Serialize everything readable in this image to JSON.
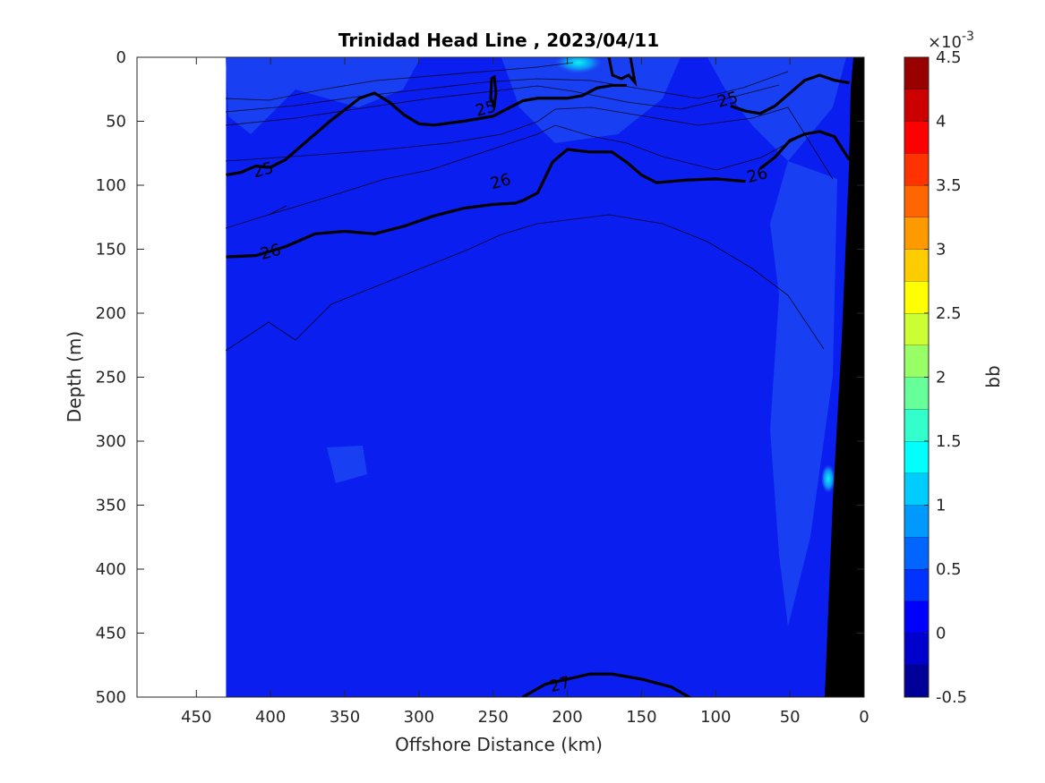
{
  "chart_data": {
    "type": "heatmap",
    "title": "Trinidad Head Line , 2023/04/11",
    "xlabel": "Offshore Distance (km)",
    "ylabel": "Depth (m)",
    "xlim": [
      490,
      0
    ],
    "ylim": [
      0,
      500
    ],
    "x_ticks": [
      450,
      400,
      350,
      300,
      250,
      200,
      150,
      100,
      50,
      0
    ],
    "y_ticks": [
      0,
      50,
      100,
      150,
      200,
      250,
      300,
      350,
      400,
      450,
      500
    ],
    "data_x_range": [
      430,
      0
    ],
    "field_color": "#0a1ef0",
    "colorbar": {
      "label": "bb",
      "exponent": "×10",
      "exponent_power": "-3",
      "range": [
        -0.5,
        4.5
      ],
      "ticks": [
        -0.5,
        0,
        0.5,
        1,
        1.5,
        2,
        2.5,
        3,
        3.5,
        4,
        4.5
      ],
      "tick_labels": [
        "-0.5",
        "0",
        "0.5",
        "1",
        "1.5",
        "2",
        "2.5",
        "3",
        "3.5",
        "4",
        "4.5"
      ],
      "levels": 20,
      "colormap": "jet"
    },
    "density_contours": [
      {
        "level": "25",
        "bold": true,
        "x": [
          430,
          420,
          410,
          400,
          390,
          380,
          360,
          340,
          330,
          320,
          310,
          300,
          290,
          270,
          250,
          240,
          230,
          220,
          200,
          190,
          180,
          170,
          160
        ],
        "y": [
          92,
          90,
          85,
          86,
          80,
          70,
          50,
          32,
          28,
          35,
          45,
          52,
          53,
          50,
          46,
          40,
          34,
          32,
          32,
          30,
          24,
          22,
          22
        ]
      },
      {
        "level": "25",
        "bold": true,
        "x": [
          90,
          80,
          70,
          60,
          50,
          40,
          30,
          20,
          10
        ],
        "y": [
          38,
          42,
          44,
          38,
          28,
          18,
          14,
          18,
          20
        ]
      },
      {
        "level": "26",
        "bold": true,
        "x": [
          430,
          410,
          390,
          370,
          350,
          330,
          310,
          290,
          270,
          250,
          235,
          230,
          220,
          210,
          200,
          185,
          170,
          160,
          150,
          140,
          120,
          100,
          80
        ],
        "y": [
          156,
          155,
          148,
          138,
          136,
          138,
          132,
          124,
          118,
          115,
          114,
          112,
          106,
          82,
          72,
          74,
          74,
          82,
          92,
          98,
          96,
          95,
          97
        ]
      },
      {
        "level": "26",
        "bold": true,
        "x": [
          70,
          60,
          50,
          40,
          30,
          20,
          10
        ],
        "y": [
          87,
          78,
          65,
          60,
          58,
          62,
          80
        ]
      },
      {
        "level": "27",
        "bold": true,
        "x": [
          230,
          215,
          200,
          185,
          170,
          150,
          130,
          115
        ],
        "y": [
          500,
          490,
          486,
          482,
          482,
          486,
          492,
          502
        ]
      }
    ],
    "contour_labels": [
      {
        "text": "25",
        "x": 255,
        "y": 40
      },
      {
        "text": "25",
        "x": 92,
        "y": 33
      },
      {
        "text": "25",
        "x": 405,
        "y": 88
      },
      {
        "text": "26",
        "x": 245,
        "y": 97
      },
      {
        "text": "26",
        "x": 72,
        "y": 92
      },
      {
        "text": "26",
        "x": 400,
        "y": 152
      },
      {
        "text": "27",
        "x": 205,
        "y": 490
      }
    ]
  }
}
